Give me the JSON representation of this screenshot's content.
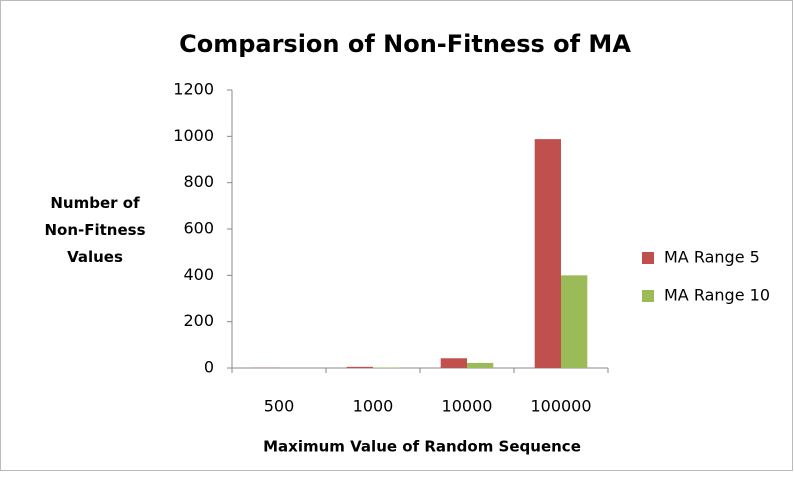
{
  "chart_data": {
    "type": "bar",
    "title": "Comparsion of Non-Fitness of MA",
    "xlabel": "Maximum Value of Random Sequence",
    "ylabel": "Number of Non-Fitness Values",
    "categories": [
      "500",
      "1000",
      "10000",
      "100000"
    ],
    "series": [
      {
        "name": "MA Range 5",
        "color": "#c0504d",
        "values": [
          1,
          5,
          42,
          988
        ]
      },
      {
        "name": "MA Range 10",
        "color": "#9bbb59",
        "values": [
          0,
          2,
          22,
          400
        ]
      }
    ],
    "ylim": [
      0,
      1200
    ],
    "yticks": [
      0,
      200,
      400,
      600,
      800,
      1000,
      1200
    ],
    "grid": false,
    "legend": "right"
  }
}
